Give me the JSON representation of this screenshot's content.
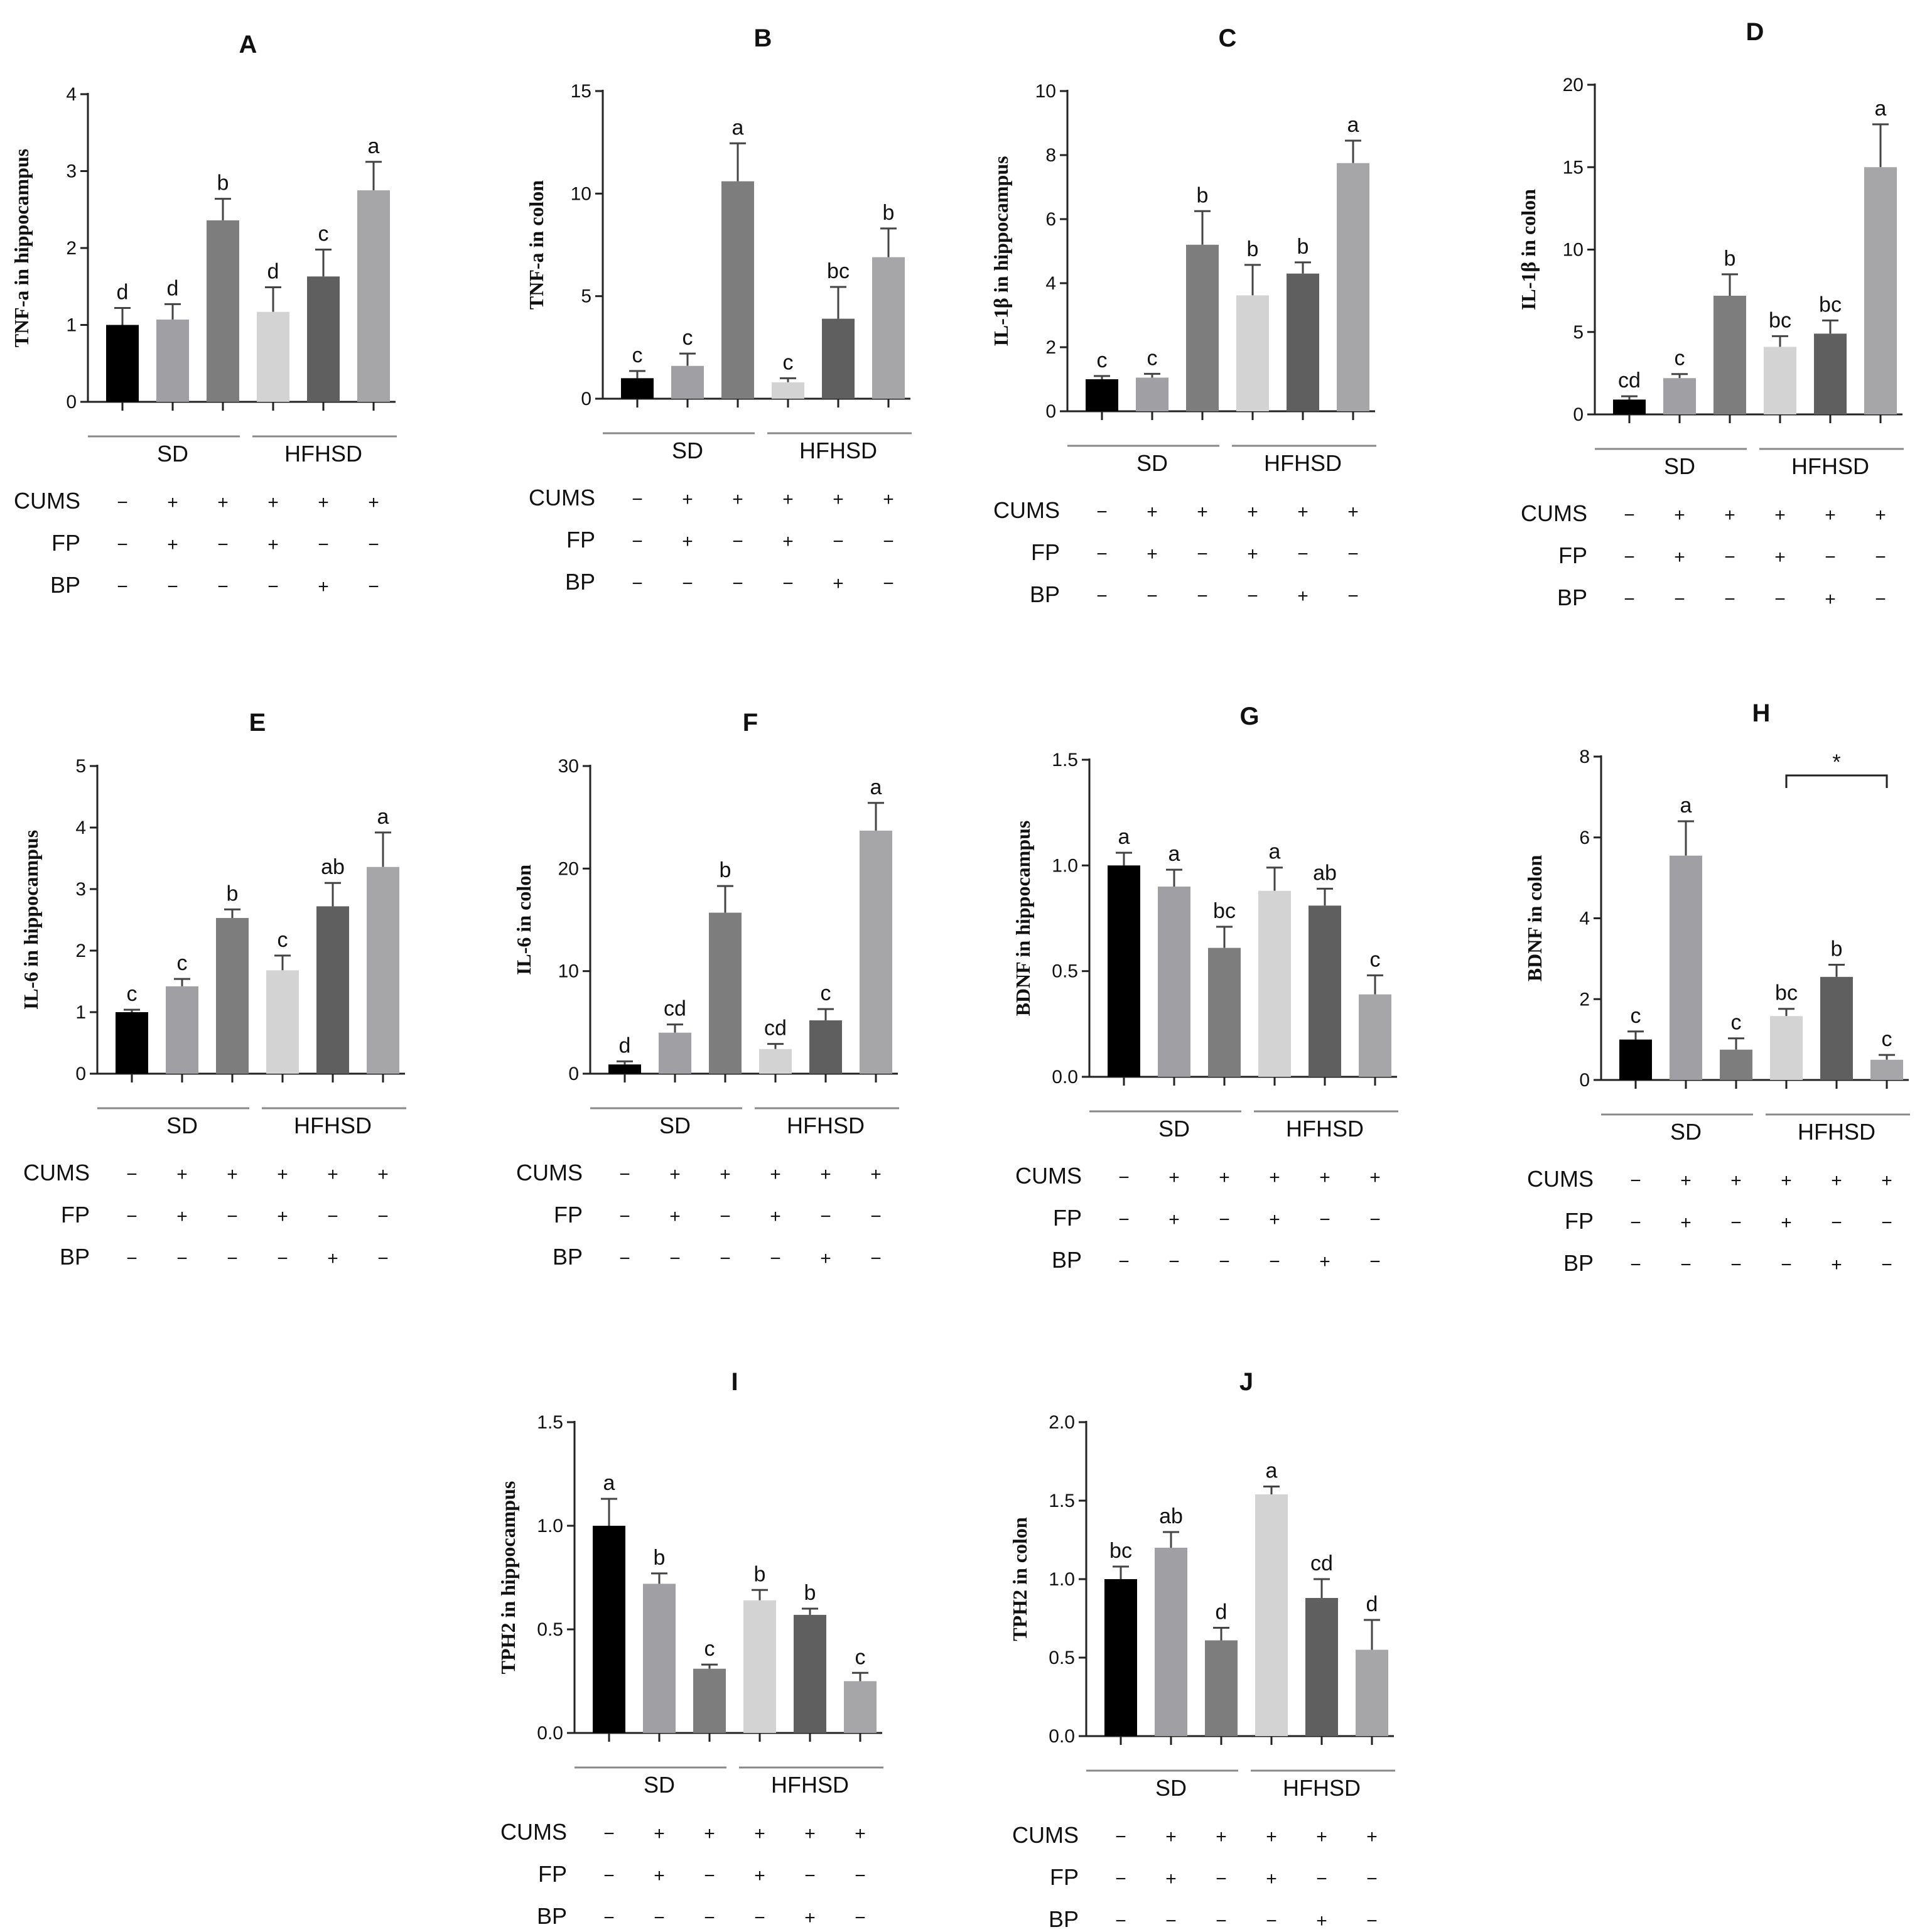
{
  "bar_colors": [
    "#000000",
    "#a0a0a4",
    "#7d7d7d",
    "#d3d3d3",
    "#5f5f5f",
    "#a6a6a8"
  ],
  "groups": [
    "SD",
    "HFHSD"
  ],
  "treatments": [
    {
      "name": "CUMS",
      "signs": [
        "−",
        "+",
        "+",
        "+",
        "+",
        "+"
      ]
    },
    {
      "name": "FP",
      "signs": [
        "−",
        "+",
        "−",
        "+",
        "−",
        "−"
      ]
    },
    {
      "name": "BP",
      "signs": [
        "−",
        "−",
        "−",
        "−",
        "+",
        "−"
      ]
    }
  ],
  "chart_data": [
    {
      "type": "bar",
      "panel": "A",
      "ylabel": "TNF-a in hippocampus",
      "ylim": [
        0,
        4
      ],
      "yticks": [
        "0",
        "1",
        "2",
        "3",
        "4"
      ],
      "values": [
        1.0,
        1.07,
        2.36,
        1.17,
        1.63,
        2.75
      ],
      "errors": [
        0.22,
        0.2,
        0.28,
        0.32,
        0.35,
        0.37
      ],
      "letters": [
        "d",
        "d",
        "b",
        "d",
        "c",
        "a"
      ]
    },
    {
      "type": "bar",
      "panel": "B",
      "ylabel": "TNF-a in colon",
      "ylim": [
        0,
        15
      ],
      "yticks": [
        "0",
        "5",
        "10",
        "15"
      ],
      "values": [
        1.0,
        1.6,
        10.6,
        0.8,
        3.9,
        6.9
      ],
      "errors": [
        0.35,
        0.6,
        1.85,
        0.2,
        1.55,
        1.4
      ],
      "letters": [
        "c",
        "c",
        "a",
        "c",
        "bc",
        "b"
      ]
    },
    {
      "type": "bar",
      "panel": "C",
      "ylabel": "IL-1β in hippocampus",
      "ylim": [
        0,
        10
      ],
      "yticks": [
        "0",
        "2",
        "4",
        "6",
        "8",
        "10"
      ],
      "values": [
        1.0,
        1.05,
        5.2,
        3.62,
        4.3,
        7.75
      ],
      "errors": [
        0.1,
        0.12,
        1.05,
        0.95,
        0.35,
        0.7
      ],
      "letters": [
        "c",
        "c",
        "b",
        "b",
        "b",
        "a"
      ]
    },
    {
      "type": "bar",
      "panel": "D",
      "ylabel": "IL-1β in colon",
      "ylim": [
        0,
        20
      ],
      "yticks": [
        "0",
        "5",
        "10",
        "15",
        "20"
      ],
      "values": [
        0.9,
        2.2,
        7.2,
        4.1,
        4.9,
        15.0
      ],
      "errors": [
        0.2,
        0.25,
        1.3,
        0.65,
        0.8,
        2.6
      ],
      "letters": [
        "cd",
        "c",
        "b",
        "bc",
        "bc",
        "a"
      ]
    },
    {
      "type": "bar",
      "panel": "E",
      "ylabel": "IL-6 in hippocampus",
      "ylim": [
        0,
        5
      ],
      "yticks": [
        "0",
        "1",
        "2",
        "3",
        "4",
        "5"
      ],
      "values": [
        1.0,
        1.42,
        2.53,
        1.68,
        2.72,
        3.36
      ],
      "errors": [
        0.04,
        0.12,
        0.14,
        0.24,
        0.38,
        0.56
      ],
      "letters": [
        "c",
        "c",
        "b",
        "c",
        "ab",
        "a"
      ]
    },
    {
      "type": "bar",
      "panel": "F",
      "ylabel": "IL-6 in colon",
      "ylim": [
        0,
        30
      ],
      "yticks": [
        "0",
        "10",
        "20",
        "30"
      ],
      "values": [
        0.9,
        4.0,
        15.7,
        2.4,
        5.2,
        23.7
      ],
      "errors": [
        0.3,
        0.8,
        2.6,
        0.5,
        1.1,
        2.7
      ],
      "letters": [
        "d",
        "cd",
        "b",
        "cd",
        "c",
        "a"
      ]
    },
    {
      "type": "bar",
      "panel": "G",
      "ylabel": "BDNF in hippocampus",
      "ylim": [
        0,
        1.5
      ],
      "yticks": [
        "0.0",
        "0.5",
        "1.0",
        "1.5"
      ],
      "values": [
        1.0,
        0.9,
        0.61,
        0.88,
        0.81,
        0.39
      ],
      "errors": [
        0.06,
        0.08,
        0.1,
        0.11,
        0.08,
        0.09
      ],
      "letters": [
        "a",
        "a",
        "bc",
        "a",
        "ab",
        "c"
      ]
    },
    {
      "type": "bar",
      "panel": "H",
      "ylabel": "BDNF in colon",
      "ylim": [
        0,
        8
      ],
      "yticks": [
        "0",
        "2",
        "4",
        "6",
        "8"
      ],
      "values": [
        1.0,
        5.55,
        0.75,
        1.58,
        2.55,
        0.5
      ],
      "errors": [
        0.2,
        0.85,
        0.28,
        0.18,
        0.3,
        0.12
      ],
      "letters": [
        "c",
        "a",
        "c",
        "bc",
        "b",
        "c"
      ],
      "bracket": {
        "from": 3,
        "to": 5,
        "label": "*"
      }
    },
    {
      "type": "bar",
      "panel": "I",
      "ylabel": "TPH2 in hippocampus",
      "ylim": [
        0,
        1.5
      ],
      "yticks": [
        "0.0",
        "0.5",
        "1.0",
        "1.5"
      ],
      "values": [
        1.0,
        0.72,
        0.31,
        0.64,
        0.57,
        0.25
      ],
      "errors": [
        0.13,
        0.05,
        0.02,
        0.05,
        0.03,
        0.04
      ],
      "letters": [
        "a",
        "b",
        "c",
        "b",
        "b",
        "c"
      ]
    },
    {
      "type": "bar",
      "panel": "J",
      "ylabel": "TPH2 in colon",
      "ylim": [
        0,
        2.0
      ],
      "yticks": [
        "0.0",
        "0.5",
        "1.0",
        "1.5",
        "2.0"
      ],
      "values": [
        1.0,
        1.2,
        0.61,
        1.54,
        0.88,
        0.55
      ],
      "errors": [
        0.08,
        0.1,
        0.08,
        0.05,
        0.12,
        0.19
      ],
      "letters": [
        "bc",
        "ab",
        "d",
        "a",
        "cd",
        "d"
      ]
    }
  ]
}
